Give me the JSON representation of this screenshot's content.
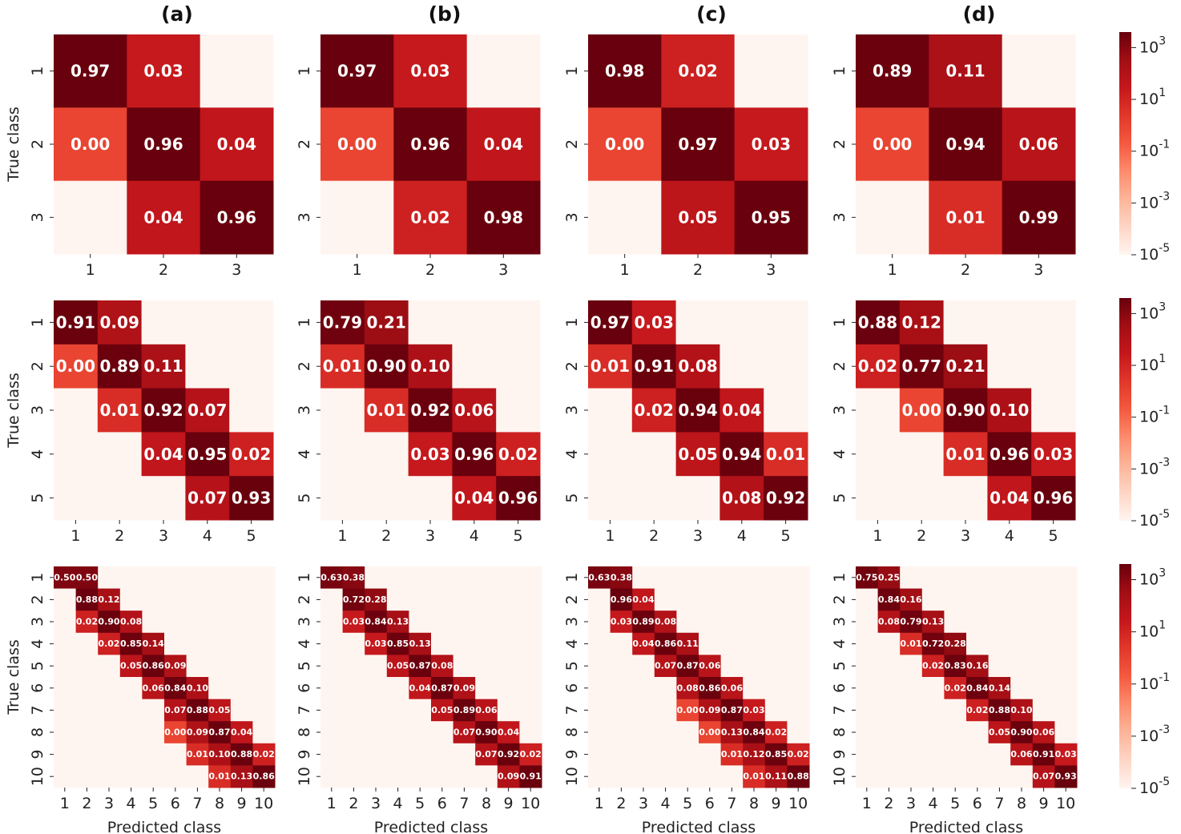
{
  "figure": {
    "column_titles": [
      "(a)",
      "(b)",
      "(c)",
      "(d)"
    ],
    "row_ylabel": "True class",
    "xlabel": "Predicted class",
    "colorbar": {
      "scale": "log",
      "tick_labels": [
        "10^3",
        "10^1",
        "10^-1",
        "10^-3",
        "10^-5"
      ],
      "tick_exponents": [
        3,
        1,
        -1,
        -3,
        -5
      ],
      "colormap": "Reds",
      "low_color": "#fff5f0",
      "high_color": "#67000d"
    }
  },
  "chart_data": [
    {
      "type": "heatmap",
      "panel": "(a)",
      "row": 1,
      "n_classes": 3,
      "xlabel": "",
      "ylabel": "True class",
      "tick_labels": [
        "1",
        "2",
        "3"
      ],
      "matrix": [
        [
          0.97,
          0.03,
          null
        ],
        [
          0.0,
          0.96,
          0.04
        ],
        [
          null,
          0.04,
          0.96
        ]
      ]
    },
    {
      "type": "heatmap",
      "panel": "(b)",
      "row": 1,
      "n_classes": 3,
      "xlabel": "",
      "ylabel": "",
      "tick_labels": [
        "1",
        "2",
        "3"
      ],
      "matrix": [
        [
          0.97,
          0.03,
          null
        ],
        [
          0.0,
          0.96,
          0.04
        ],
        [
          null,
          0.02,
          0.98
        ]
      ]
    },
    {
      "type": "heatmap",
      "panel": "(c)",
      "row": 1,
      "n_classes": 3,
      "xlabel": "",
      "ylabel": "",
      "tick_labels": [
        "1",
        "2",
        "3"
      ],
      "matrix": [
        [
          0.98,
          0.02,
          null
        ],
        [
          0.0,
          0.97,
          0.03
        ],
        [
          null,
          0.05,
          0.95
        ]
      ]
    },
    {
      "type": "heatmap",
      "panel": "(d)",
      "row": 1,
      "n_classes": 3,
      "xlabel": "",
      "ylabel": "",
      "tick_labels": [
        "1",
        "2",
        "3"
      ],
      "matrix": [
        [
          0.89,
          0.11,
          null
        ],
        [
          0.0,
          0.94,
          0.06
        ],
        [
          null,
          0.01,
          0.99
        ]
      ]
    },
    {
      "type": "heatmap",
      "panel": "(a)",
      "row": 2,
      "n_classes": 5,
      "xlabel": "",
      "ylabel": "True class",
      "tick_labels": [
        "1",
        "2",
        "3",
        "4",
        "5"
      ],
      "matrix": [
        [
          0.91,
          0.09,
          null,
          null,
          null
        ],
        [
          0.0,
          0.89,
          0.11,
          null,
          null
        ],
        [
          null,
          0.01,
          0.92,
          0.07,
          null
        ],
        [
          null,
          null,
          0.04,
          0.95,
          0.02
        ],
        [
          null,
          null,
          null,
          0.07,
          0.93
        ]
      ]
    },
    {
      "type": "heatmap",
      "panel": "(b)",
      "row": 2,
      "n_classes": 5,
      "xlabel": "",
      "ylabel": "",
      "tick_labels": [
        "1",
        "2",
        "3",
        "4",
        "5"
      ],
      "matrix": [
        [
          0.79,
          0.21,
          null,
          null,
          null
        ],
        [
          0.01,
          0.9,
          0.1,
          null,
          null
        ],
        [
          null,
          0.01,
          0.92,
          0.06,
          null
        ],
        [
          null,
          null,
          0.03,
          0.96,
          0.02
        ],
        [
          null,
          null,
          null,
          0.04,
          0.96
        ]
      ]
    },
    {
      "type": "heatmap",
      "panel": "(c)",
      "row": 2,
      "n_classes": 5,
      "xlabel": "",
      "ylabel": "",
      "tick_labels": [
        "1",
        "2",
        "3",
        "4",
        "5"
      ],
      "matrix": [
        [
          0.97,
          0.03,
          null,
          null,
          null
        ],
        [
          0.01,
          0.91,
          0.08,
          null,
          null
        ],
        [
          null,
          0.02,
          0.94,
          0.04,
          null
        ],
        [
          null,
          null,
          0.05,
          0.94,
          0.01
        ],
        [
          null,
          null,
          null,
          0.08,
          0.92
        ]
      ]
    },
    {
      "type": "heatmap",
      "panel": "(d)",
      "row": 2,
      "n_classes": 5,
      "xlabel": "",
      "ylabel": "",
      "tick_labels": [
        "1",
        "2",
        "3",
        "4",
        "5"
      ],
      "matrix": [
        [
          0.88,
          0.12,
          null,
          null,
          null
        ],
        [
          0.02,
          0.77,
          0.21,
          null,
          null
        ],
        [
          null,
          0.0,
          0.9,
          0.1,
          null
        ],
        [
          null,
          null,
          0.01,
          0.96,
          0.03
        ],
        [
          null,
          null,
          null,
          0.04,
          0.96
        ]
      ]
    },
    {
      "type": "heatmap",
      "panel": "(a)",
      "row": 3,
      "n_classes": 10,
      "xlabel": "Predicted class",
      "ylabel": "True class",
      "tick_labels": [
        "1",
        "2",
        "3",
        "4",
        "5",
        "6",
        "7",
        "8",
        "9",
        "10"
      ],
      "matrix": [
        [
          0.5,
          0.5,
          null,
          null,
          null,
          null,
          null,
          null,
          null,
          null
        ],
        [
          null,
          0.88,
          0.12,
          null,
          null,
          null,
          null,
          null,
          null,
          null
        ],
        [
          null,
          0.02,
          0.9,
          0.08,
          null,
          null,
          null,
          null,
          null,
          null
        ],
        [
          null,
          null,
          0.02,
          0.85,
          0.14,
          null,
          null,
          null,
          null,
          null
        ],
        [
          null,
          null,
          null,
          0.05,
          0.86,
          0.09,
          null,
          null,
          null,
          null
        ],
        [
          null,
          null,
          null,
          null,
          0.06,
          0.84,
          0.1,
          null,
          null,
          null
        ],
        [
          null,
          null,
          null,
          null,
          null,
          0.07,
          0.88,
          0.05,
          null,
          null
        ],
        [
          null,
          null,
          null,
          null,
          null,
          0.0,
          0.09,
          0.87,
          0.04,
          null
        ],
        [
          null,
          null,
          null,
          null,
          null,
          null,
          0.01,
          0.1,
          0.88,
          0.02
        ],
        [
          null,
          null,
          null,
          null,
          null,
          null,
          null,
          0.01,
          0.13,
          0.86
        ]
      ]
    },
    {
      "type": "heatmap",
      "panel": "(b)",
      "row": 3,
      "n_classes": 10,
      "xlabel": "Predicted class",
      "ylabel": "",
      "tick_labels": [
        "1",
        "2",
        "3",
        "4",
        "5",
        "6",
        "7",
        "8",
        "9",
        "10"
      ],
      "matrix": [
        [
          0.63,
          0.38,
          null,
          null,
          null,
          null,
          null,
          null,
          null,
          null
        ],
        [
          null,
          0.72,
          0.28,
          null,
          null,
          null,
          null,
          null,
          null,
          null
        ],
        [
          null,
          0.03,
          0.84,
          0.13,
          null,
          null,
          null,
          null,
          null,
          null
        ],
        [
          null,
          null,
          0.03,
          0.85,
          0.13,
          null,
          null,
          null,
          null,
          null
        ],
        [
          null,
          null,
          null,
          0.05,
          0.87,
          0.08,
          null,
          null,
          null,
          null
        ],
        [
          null,
          null,
          null,
          null,
          0.04,
          0.87,
          0.09,
          null,
          null,
          null
        ],
        [
          null,
          null,
          null,
          null,
          null,
          0.05,
          0.89,
          0.06,
          null,
          null
        ],
        [
          null,
          null,
          null,
          null,
          null,
          null,
          0.07,
          0.9,
          0.04,
          null
        ],
        [
          null,
          null,
          null,
          null,
          null,
          null,
          null,
          0.07,
          0.92,
          0.02
        ],
        [
          null,
          null,
          null,
          null,
          null,
          null,
          null,
          null,
          0.09,
          0.91
        ]
      ]
    },
    {
      "type": "heatmap",
      "panel": "(c)",
      "row": 3,
      "n_classes": 10,
      "xlabel": "Predicted class",
      "ylabel": "",
      "tick_labels": [
        "1",
        "2",
        "3",
        "4",
        "5",
        "6",
        "7",
        "8",
        "9",
        "10"
      ],
      "matrix": [
        [
          0.63,
          0.38,
          null,
          null,
          null,
          null,
          null,
          null,
          null,
          null
        ],
        [
          null,
          0.96,
          0.04,
          null,
          null,
          null,
          null,
          null,
          null,
          null
        ],
        [
          null,
          0.03,
          0.89,
          0.08,
          null,
          null,
          null,
          null,
          null,
          null
        ],
        [
          null,
          null,
          0.04,
          0.86,
          0.11,
          null,
          null,
          null,
          null,
          null
        ],
        [
          null,
          null,
          null,
          0.07,
          0.87,
          0.06,
          null,
          null,
          null,
          null
        ],
        [
          null,
          null,
          null,
          null,
          0.08,
          0.86,
          0.06,
          null,
          null,
          null
        ],
        [
          null,
          null,
          null,
          null,
          0.0,
          0.09,
          0.87,
          0.03,
          null,
          null
        ],
        [
          null,
          null,
          null,
          null,
          null,
          0.0,
          0.13,
          0.84,
          0.02,
          null
        ],
        [
          null,
          null,
          null,
          null,
          null,
          null,
          0.01,
          0.12,
          0.85,
          0.02
        ],
        [
          null,
          null,
          null,
          null,
          null,
          null,
          null,
          0.01,
          0.11,
          0.88
        ]
      ]
    },
    {
      "type": "heatmap",
      "panel": "(d)",
      "row": 3,
      "n_classes": 10,
      "xlabel": "Predicted class",
      "ylabel": "",
      "tick_labels": [
        "1",
        "2",
        "3",
        "4",
        "5",
        "6",
        "7",
        "8",
        "9",
        "10"
      ],
      "matrix": [
        [
          0.75,
          0.25,
          null,
          null,
          null,
          null,
          null,
          null,
          null,
          null
        ],
        [
          null,
          0.84,
          0.16,
          null,
          null,
          null,
          null,
          null,
          null,
          null
        ],
        [
          null,
          0.08,
          0.79,
          0.13,
          null,
          null,
          null,
          null,
          null,
          null
        ],
        [
          null,
          null,
          0.01,
          0.72,
          0.28,
          null,
          null,
          null,
          null,
          null
        ],
        [
          null,
          null,
          null,
          0.02,
          0.83,
          0.16,
          null,
          null,
          null,
          null
        ],
        [
          null,
          null,
          null,
          null,
          0.02,
          0.84,
          0.14,
          null,
          null,
          null
        ],
        [
          null,
          null,
          null,
          null,
          null,
          0.02,
          0.88,
          0.1,
          null,
          null
        ],
        [
          null,
          null,
          null,
          null,
          null,
          null,
          0.05,
          0.9,
          0.06,
          null
        ],
        [
          null,
          null,
          null,
          null,
          null,
          null,
          null,
          0.06,
          0.91,
          0.03
        ],
        [
          null,
          null,
          null,
          null,
          null,
          null,
          null,
          null,
          0.07,
          0.93
        ]
      ]
    }
  ]
}
